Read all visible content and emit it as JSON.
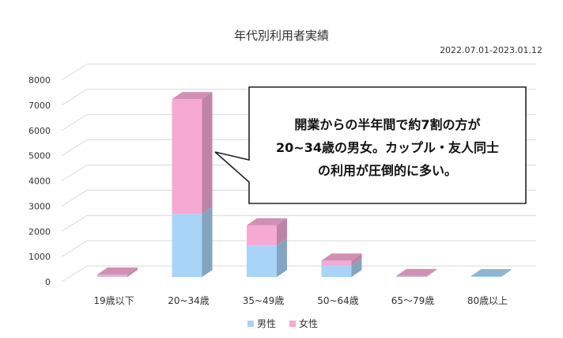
{
  "chart_data": {
    "type": "bar",
    "stacked": true,
    "style": "3d",
    "title": "年代別利用者実績",
    "subtitle": "2022.07.01-2023.01.12",
    "categories": [
      "19歳以下",
      "20~34歳",
      "35~49歳",
      "50~64歳",
      "65〜79歳",
      "80歳以上"
    ],
    "series": [
      {
        "name": "男性",
        "values": [
          20,
          2500,
          1250,
          450,
          20,
          30
        ],
        "color": "#a8d4f7"
      },
      {
        "name": "女性",
        "values": [
          80,
          4550,
          800,
          200,
          20,
          0
        ],
        "color": "#f5a9d3"
      }
    ],
    "ylim": [
      0,
      8000
    ],
    "yticks": [
      "0",
      "1000",
      "2000",
      "3000",
      "4000",
      "5000",
      "6000",
      "7000",
      "8000"
    ],
    "grid": true,
    "legend_position": "bottom",
    "annotation": {
      "lines": [
        "開業からの半年間で約7割の方が",
        "20~34歳の男女。カップル・友人同士",
        "の利用が圧倒的に多い。"
      ]
    }
  }
}
